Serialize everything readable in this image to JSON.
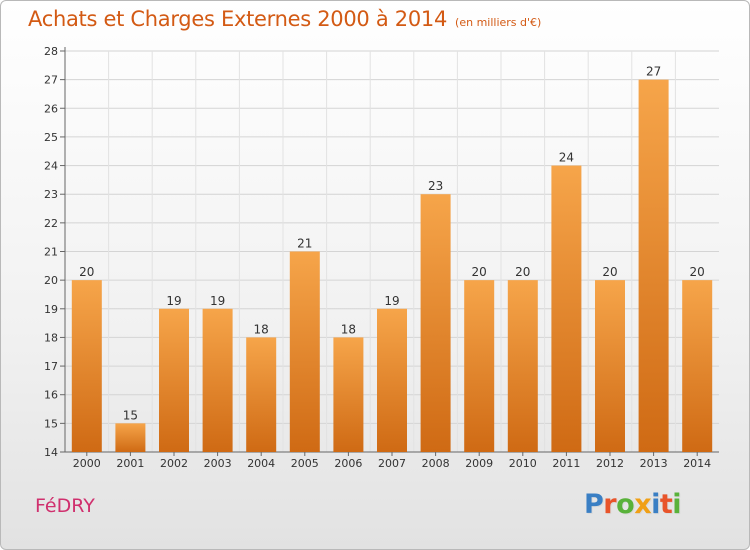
{
  "header": {
    "title": "Achats et Charges Externes 2000 à 2014",
    "unit": "(en milliers d'€)"
  },
  "footer": {
    "commune": "FéDRY",
    "logo_text": "Proxiti",
    "logo_colors": [
      "#3a7fc4",
      "#e8542a",
      "#59b23a",
      "#f0a016",
      "#3a7fc4",
      "#e8542a",
      "#59b23a"
    ]
  },
  "colors": {
    "bar_light": "#f6a54a",
    "bar_dark": "#cf6a14",
    "title": "#d35a14",
    "commune": "#d0306e"
  },
  "chart_data": {
    "type": "bar",
    "categories": [
      "2000",
      "2001",
      "2002",
      "2003",
      "2004",
      "2005",
      "2006",
      "2007",
      "2008",
      "2009",
      "2010",
      "2011",
      "2012",
      "2013",
      "2014"
    ],
    "values": [
      20,
      15,
      19,
      19,
      18,
      21,
      18,
      19,
      23,
      20,
      20,
      24,
      20,
      27,
      20
    ],
    "data_labels": [
      "20",
      "15",
      "19",
      "19",
      "18",
      "21",
      "18",
      "19",
      "23",
      "20",
      "20",
      "24",
      "20",
      "27",
      "20"
    ],
    "ylim": [
      14,
      28
    ],
    "yticks": [
      "14",
      "15",
      "16",
      "17",
      "18",
      "19",
      "20",
      "21",
      "22",
      "23",
      "24",
      "25",
      "26",
      "27",
      "28"
    ],
    "grid": true
  }
}
